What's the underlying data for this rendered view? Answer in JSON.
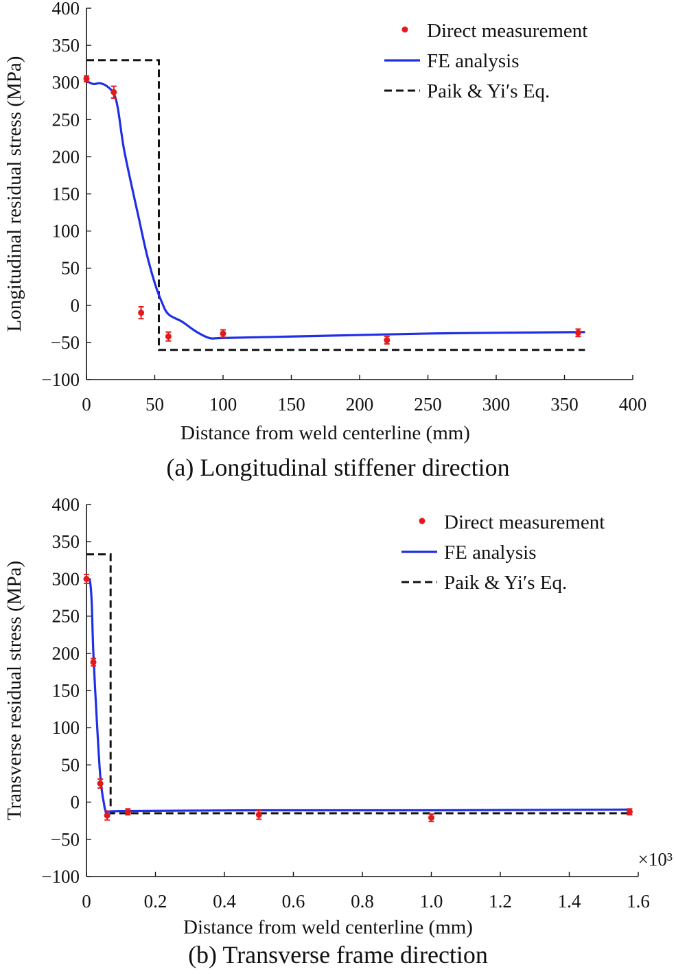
{
  "chart_data": [
    {
      "type": "line",
      "panel": "a",
      "caption": "(a) Longitudinal stiffener direction",
      "xlabel": "Distance from weld centerline (mm)",
      "ylabel": "Longitudinal residual stress (MPa)",
      "xlim": [
        0,
        400
      ],
      "ylim": [
        -100,
        400
      ],
      "xticks": [
        0,
        50,
        100,
        150,
        200,
        250,
        300,
        350,
        400
      ],
      "xtick_labels": [
        "0",
        "50",
        "100",
        "150",
        "200",
        "250",
        "300",
        "350",
        "400"
      ],
      "yticks": [
        -100,
        -50,
        0,
        50,
        100,
        150,
        200,
        250,
        300,
        350,
        400
      ],
      "ytick_labels": [
        "−100",
        "−50",
        "0",
        "50",
        "100",
        "150",
        "200",
        "250",
        "300",
        "350",
        "400"
      ],
      "x_multiplier_label": "",
      "legend_position": "top-right",
      "series": [
        {
          "name": "Direct measurement",
          "kind": "scatter",
          "color": "#e31a1c",
          "points": [
            {
              "x": 0,
              "y": 305,
              "err": 4
            },
            {
              "x": 20,
              "y": 287,
              "err": 8
            },
            {
              "x": 40,
              "y": -10,
              "err": 8
            },
            {
              "x": 60,
              "y": -42,
              "err": 6
            },
            {
              "x": 100,
              "y": -38,
              "err": 5
            },
            {
              "x": 220,
              "y": -47,
              "err": 5
            },
            {
              "x": 360,
              "y": -37,
              "err": 5
            }
          ]
        },
        {
          "name": "FE analysis",
          "kind": "line",
          "color": "#1f2fe6",
          "points": [
            {
              "x": 0,
              "y": 302
            },
            {
              "x": 5,
              "y": 298
            },
            {
              "x": 10,
              "y": 299
            },
            {
              "x": 15,
              "y": 295
            },
            {
              "x": 20,
              "y": 285
            },
            {
              "x": 23,
              "y": 265
            },
            {
              "x": 27,
              "y": 215
            },
            {
              "x": 32,
              "y": 170
            },
            {
              "x": 38,
              "y": 120
            },
            {
              "x": 44,
              "y": 70
            },
            {
              "x": 50,
              "y": 30
            },
            {
              "x": 55,
              "y": 5
            },
            {
              "x": 60,
              "y": -12
            },
            {
              "x": 70,
              "y": -22
            },
            {
              "x": 80,
              "y": -35
            },
            {
              "x": 90,
              "y": -44
            },
            {
              "x": 100,
              "y": -44
            },
            {
              "x": 150,
              "y": -42
            },
            {
              "x": 200,
              "y": -40
            },
            {
              "x": 250,
              "y": -38
            },
            {
              "x": 300,
              "y": -37
            },
            {
              "x": 365,
              "y": -36
            }
          ]
        },
        {
          "name": "Paik & Yi′s Eq.",
          "kind": "dashed",
          "color": "#111111",
          "points": [
            {
              "x": 0,
              "y": 330
            },
            {
              "x": 53,
              "y": 330
            },
            {
              "x": 53,
              "y": -60
            },
            {
              "x": 365,
              "y": -60
            }
          ]
        }
      ]
    },
    {
      "type": "line",
      "panel": "b",
      "caption": "(b) Transverse frame direction",
      "xlabel": "Distance from weld centerline (mm)",
      "ylabel": "Transverse residual stress (MPa)",
      "xlim": [
        0,
        1.6
      ],
      "ylim": [
        -100,
        400
      ],
      "xticks": [
        0,
        0.2,
        0.4,
        0.6,
        0.8,
        1.0,
        1.2,
        1.4,
        1.6
      ],
      "xtick_labels": [
        "0",
        "0.2",
        "0.4",
        "0.6",
        "0.8",
        "1.0",
        "1.2",
        "1.4",
        "1.6"
      ],
      "yticks": [
        -100,
        -50,
        0,
        50,
        100,
        150,
        200,
        250,
        300,
        350,
        400
      ],
      "ytick_labels": [
        "−100",
        "−50",
        "0",
        "50",
        "100",
        "150",
        "200",
        "250",
        "300",
        "350",
        "400"
      ],
      "x_multiplier_label": "×10³",
      "legend_position": "top-right",
      "series": [
        {
          "name": "Direct measurement",
          "kind": "scatter",
          "color": "#e31a1c",
          "points": [
            {
              "x": 0.0,
              "y": 300,
              "err": 6
            },
            {
              "x": 0.02,
              "y": 188,
              "err": 5
            },
            {
              "x": 0.04,
              "y": 25,
              "err": 6
            },
            {
              "x": 0.06,
              "y": -18,
              "err": 6
            },
            {
              "x": 0.12,
              "y": -13,
              "err": 4
            },
            {
              "x": 0.5,
              "y": -17,
              "err": 6
            },
            {
              "x": 1.0,
              "y": -21,
              "err": 5
            },
            {
              "x": 1.575,
              "y": -13,
              "err": 4
            }
          ]
        },
        {
          "name": "FE analysis",
          "kind": "line",
          "color": "#1f2fe6",
          "points": [
            {
              "x": 0.0,
              "y": 300
            },
            {
              "x": 0.01,
              "y": 297
            },
            {
              "x": 0.015,
              "y": 270
            },
            {
              "x": 0.02,
              "y": 200
            },
            {
              "x": 0.03,
              "y": 110
            },
            {
              "x": 0.04,
              "y": 35
            },
            {
              "x": 0.05,
              "y": 0
            },
            {
              "x": 0.06,
              "y": -13
            },
            {
              "x": 0.1,
              "y": -12
            },
            {
              "x": 0.5,
              "y": -11
            },
            {
              "x": 1.0,
              "y": -11
            },
            {
              "x": 1.575,
              "y": -10
            }
          ]
        },
        {
          "name": "Paik & Yi′s Eq.",
          "kind": "dashed",
          "color": "#111111",
          "points": [
            {
              "x": 0.0,
              "y": 333
            },
            {
              "x": 0.07,
              "y": 333
            },
            {
              "x": 0.07,
              "y": -15
            },
            {
              "x": 1.575,
              "y": -15
            }
          ]
        }
      ]
    }
  ]
}
